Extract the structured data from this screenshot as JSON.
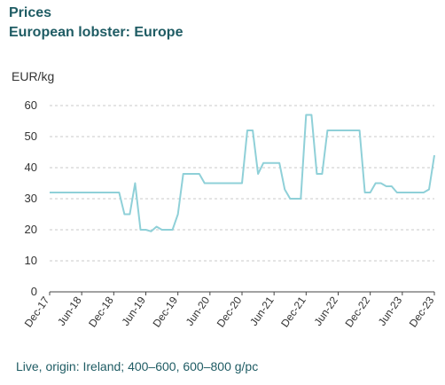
{
  "chart_data": {
    "type": "line",
    "title": "Prices",
    "subtitle": "European lobster: Europe",
    "ylabel": "EUR/kg",
    "footnote": "Live, origin: Ireland; 400–600, 600–800 g/pc",
    "ylim": [
      0,
      60
    ],
    "yticks": [
      0,
      10,
      20,
      30,
      40,
      50,
      60
    ],
    "grid": true,
    "xlim": [
      "2017-12-01",
      "2023-12-01"
    ],
    "x_ticks": [
      "Dec-17",
      "Jun-18",
      "Dec-18",
      "Jun-19",
      "Dec-19",
      "Jun-20",
      "Dec-20",
      "Jun-21",
      "Dec-21",
      "Jun-22",
      "Dec-22",
      "Jun-23",
      "Dec-23"
    ],
    "colors": {
      "line": "#8fd0d8",
      "axis": "#444444",
      "grid": "#c8c8c8",
      "title": "#1f5c64"
    },
    "series": [
      {
        "points": [
          [
            "2017-12-01",
            32
          ],
          [
            "2018-01-01",
            32
          ],
          [
            "2018-02-01",
            32
          ],
          [
            "2018-03-01",
            32
          ],
          [
            "2018-04-01",
            32
          ],
          [
            "2018-05-01",
            32
          ],
          [
            "2018-06-01",
            32
          ],
          [
            "2018-07-01",
            32
          ],
          [
            "2018-08-01",
            32
          ],
          [
            "2018-09-01",
            32
          ],
          [
            "2018-10-01",
            32
          ],
          [
            "2018-11-01",
            32
          ],
          [
            "2018-12-01",
            32
          ],
          [
            "2019-01-01",
            32
          ],
          [
            "2019-02-01",
            25
          ],
          [
            "2019-03-01",
            25
          ],
          [
            "2019-04-01",
            35
          ],
          [
            "2019-05-01",
            20
          ],
          [
            "2019-06-01",
            20
          ],
          [
            "2019-07-01",
            19.5
          ],
          [
            "2019-08-01",
            21
          ],
          [
            "2019-09-01",
            20
          ],
          [
            "2019-10-01",
            20
          ],
          [
            "2019-11-01",
            20
          ],
          [
            "2019-12-01",
            25
          ],
          [
            "2020-01-01",
            38
          ],
          [
            "2020-02-01",
            38
          ],
          [
            "2020-03-01",
            38
          ],
          [
            "2020-04-01",
            38
          ],
          [
            "2020-05-01",
            35
          ],
          [
            "2020-06-01",
            35
          ],
          [
            "2020-07-01",
            35
          ],
          [
            "2020-08-01",
            35
          ],
          [
            "2020-09-01",
            35
          ],
          [
            "2020-10-01",
            35
          ],
          [
            "2020-11-01",
            35
          ],
          [
            "2020-12-01",
            35
          ],
          [
            "2021-01-01",
            52
          ],
          [
            "2021-02-01",
            52
          ],
          [
            "2021-03-01",
            38
          ],
          [
            "2021-04-01",
            41.5
          ],
          [
            "2021-05-01",
            41.5
          ],
          [
            "2021-06-01",
            41.5
          ],
          [
            "2021-07-01",
            41.5
          ],
          [
            "2021-08-01",
            33
          ],
          [
            "2021-09-01",
            30
          ],
          [
            "2021-10-01",
            30
          ],
          [
            "2021-11-01",
            30
          ],
          [
            "2021-12-01",
            57
          ],
          [
            "2022-01-01",
            57
          ],
          [
            "2022-02-01",
            38
          ],
          [
            "2022-03-01",
            38
          ],
          [
            "2022-04-01",
            52
          ],
          [
            "2022-05-01",
            52
          ],
          [
            "2022-06-01",
            52
          ],
          [
            "2022-07-01",
            52
          ],
          [
            "2022-08-01",
            52
          ],
          [
            "2022-09-01",
            52
          ],
          [
            "2022-10-01",
            52
          ],
          [
            "2022-11-01",
            32
          ],
          [
            "2022-12-01",
            32
          ],
          [
            "2023-01-01",
            35
          ],
          [
            "2023-02-01",
            35
          ],
          [
            "2023-03-01",
            34
          ],
          [
            "2023-04-01",
            34
          ],
          [
            "2023-05-01",
            32
          ],
          [
            "2023-06-01",
            32
          ],
          [
            "2023-07-01",
            32
          ],
          [
            "2023-08-01",
            32
          ],
          [
            "2023-09-01",
            32
          ],
          [
            "2023-10-01",
            32
          ],
          [
            "2023-11-01",
            33
          ],
          [
            "2023-12-01",
            44
          ]
        ]
      }
    ]
  }
}
